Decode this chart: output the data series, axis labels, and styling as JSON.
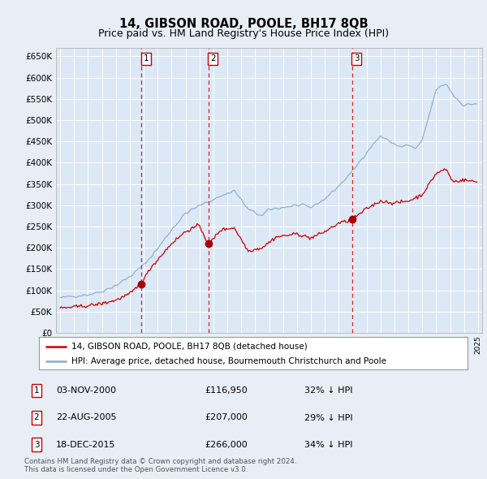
{
  "title": "14, GIBSON ROAD, POOLE, BH17 8QB",
  "subtitle": "Price paid vs. HM Land Registry's House Price Index (HPI)",
  "legend_label_red": "14, GIBSON ROAD, POOLE, BH17 8QB (detached house)",
  "legend_label_blue": "HPI: Average price, detached house, Bournemouth Christchurch and Poole",
  "footnote": "Contains HM Land Registry data © Crown copyright and database right 2024.\nThis data is licensed under the Open Government Licence v3.0.",
  "sales": [
    {
      "num": 1,
      "date": "03-NOV-2000",
      "price": 116950,
      "pct": "32%",
      "dir": "↓",
      "x_year": 2000.84
    },
    {
      "num": 2,
      "date": "22-AUG-2005",
      "price": 207000,
      "pct": "29%",
      "dir": "↓",
      "x_year": 2005.64
    },
    {
      "num": 3,
      "date": "18-DEC-2015",
      "price": 266000,
      "pct": "34%",
      "dir": "↓",
      "x_year": 2015.96
    }
  ],
  "ylim": [
    0,
    670000
  ],
  "xlim_start": 1994.7,
  "xlim_end": 2025.3,
  "background_color": "#e8eef5",
  "plot_bg": "#dce8f5",
  "grid_color": "#ffffff",
  "red_line_color": "#cc0000",
  "blue_line_color": "#88aacc",
  "dashed_color": "#cc0000",
  "marker_color": "#aa0000",
  "box_edge_color": "#cc0000",
  "title_fontsize": 10.5,
  "subtitle_fontsize": 9
}
